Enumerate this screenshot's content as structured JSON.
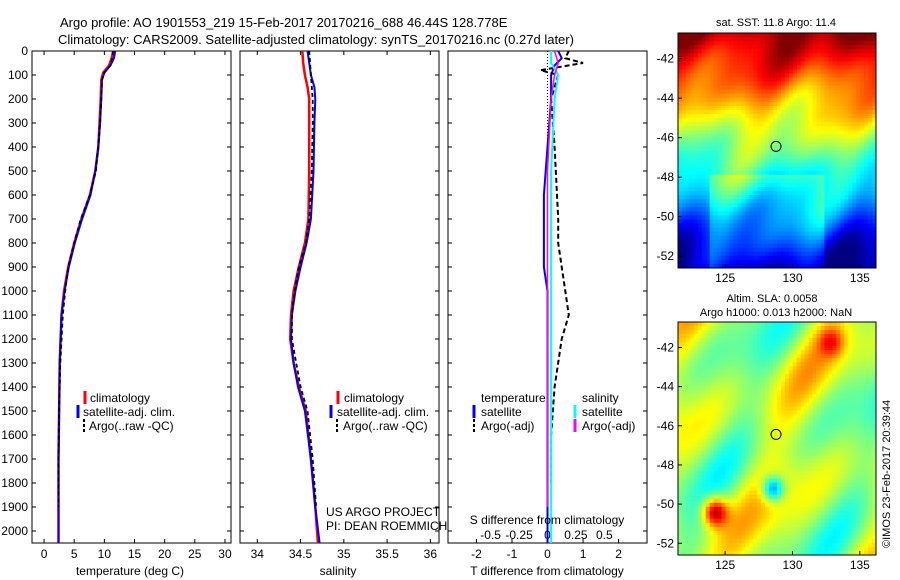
{
  "header": {
    "line1": "Argo profile: AO 1901553_219 15-Feb-2017 20170216_688 46.44S 128.778E",
    "line2": "Climatology: CARS2009. Satellite-adjusted climatology: synTS_20170216.nc (0.27d later)"
  },
  "sst_map": {
    "title": "sat. SST: 11.8 Argo: 11.4"
  },
  "sla_map": {
    "title1": "Altim. SLA: 0.0058",
    "title2": "Argo h1000: 0.013 h2000: NaN"
  },
  "credit": "©IMOS 23-Feb-2017 20:39:44",
  "project": {
    "line1": "US ARGO PROJECT",
    "line2": "PI: DEAN ROEMMICH"
  },
  "colors": {
    "climatology": "#ff0000",
    "satellite": "#0000ff",
    "argo": "#000000",
    "sal_satellite": "#00ffff",
    "sal_argo": "#ff00ff"
  },
  "chart_data": [
    {
      "type": "line",
      "xlabel": "temperature (deg C)",
      "ylabel": "",
      "xlim": [
        -2,
        31
      ],
      "ylim": [
        2050,
        0
      ],
      "xticks": [
        "0",
        "5",
        "10",
        "15",
        "20",
        "25",
        "30"
      ],
      "yticks": [
        "0",
        "100",
        "200",
        "300",
        "400",
        "500",
        "600",
        "700",
        "800",
        "900",
        "1000",
        "1100",
        "1200",
        "1300",
        "1400",
        "1500",
        "1600",
        "1700",
        "1800",
        "1900",
        "2000"
      ],
      "legend": {
        "position": "lower-left",
        "entries": [
          "climatology",
          "satellite-adj. clim.",
          "Argo(..raw -QC)"
        ]
      },
      "series": [
        {
          "name": "climatology",
          "x": [
            11.5,
            11.2,
            10.8,
            9.8,
            9.5,
            9.4,
            9.2,
            9.0,
            8.5,
            7.6,
            6.2,
            5.0,
            4.0,
            3.3,
            2.9,
            2.6,
            2.5,
            2.4,
            2.4,
            2.4
          ],
          "y": [
            0,
            30,
            60,
            90,
            120,
            200,
            300,
            400,
            500,
            600,
            700,
            800,
            900,
            1000,
            1100,
            1300,
            1500,
            1700,
            1900,
            2050
          ]
        },
        {
          "name": "satellite-adj. clim.",
          "x": [
            11.8,
            11.6,
            11.0,
            10.0,
            9.6,
            9.5,
            9.3,
            9.0,
            8.5,
            7.7,
            6.3,
            5.1,
            4.1,
            3.4,
            2.9,
            2.6,
            2.5,
            2.4,
            2.4,
            2.4
          ],
          "y": [
            0,
            30,
            60,
            90,
            120,
            200,
            300,
            400,
            500,
            600,
            700,
            800,
            900,
            1000,
            1100,
            1300,
            1500,
            1700,
            1900,
            2050
          ]
        },
        {
          "name": "Argo(..raw -QC)",
          "x": [
            11.4,
            11.3,
            11.0,
            10.0,
            9.6,
            9.5,
            9.3,
            9.0,
            8.6,
            7.6,
            6.1,
            5.0,
            4.0,
            3.5,
            3.1,
            2.7,
            2.5,
            2.4,
            2.4
          ],
          "y": [
            0,
            30,
            60,
            90,
            120,
            200,
            300,
            400,
            500,
            600,
            700,
            800,
            900,
            1000,
            1100,
            1300,
            1500,
            1700,
            1900
          ]
        }
      ]
    },
    {
      "type": "line",
      "xlabel": "salinity",
      "xlim": [
        33.8,
        36.1
      ],
      "ylim": [
        2050,
        0
      ],
      "xticks": [
        "34",
        "34.5",
        "35",
        "35.5",
        "36"
      ],
      "legend": {
        "position": "lower-right",
        "entries": [
          "climatology",
          "satellite-adj. clim.",
          "Argo(..raw -QC)"
        ]
      },
      "series": [
        {
          "name": "climatology",
          "x": [
            34.52,
            34.53,
            34.55,
            34.58,
            34.6,
            34.6,
            34.6,
            34.59,
            34.55,
            34.48,
            34.42,
            34.39,
            34.38,
            34.42,
            34.48,
            34.56,
            34.62,
            34.67,
            34.7
          ],
          "y": [
            0,
            50,
            100,
            150,
            200,
            300,
            500,
            700,
            800,
            900,
            1000,
            1100,
            1200,
            1300,
            1400,
            1500,
            1700,
            1900,
            2050
          ]
        },
        {
          "name": "satellite-adj. clim.",
          "x": [
            34.58,
            34.6,
            34.62,
            34.66,
            34.67,
            34.66,
            34.65,
            34.62,
            34.57,
            34.5,
            34.44,
            34.4,
            34.39,
            34.42,
            34.47,
            34.55,
            34.62,
            34.67,
            34.72
          ],
          "y": [
            0,
            50,
            100,
            150,
            200,
            300,
            500,
            700,
            800,
            900,
            1000,
            1100,
            1200,
            1300,
            1400,
            1500,
            1700,
            1900,
            2050
          ]
        },
        {
          "name": "Argo(..raw -QC)",
          "x": [
            34.6,
            34.61,
            34.62,
            34.63,
            34.64,
            34.64,
            34.63,
            34.6,
            34.56,
            34.48,
            34.43,
            34.4,
            34.4,
            34.45,
            34.5,
            34.58,
            34.64,
            34.68
          ],
          "y": [
            0,
            50,
            100,
            150,
            200,
            300,
            500,
            700,
            800,
            900,
            1000,
            1100,
            1200,
            1300,
            1400,
            1500,
            1700,
            1900
          ]
        }
      ]
    },
    {
      "type": "line",
      "xlabel": "T difference from climatology",
      "title": "S difference from climatology",
      "xlim": [
        -2.8,
        2.8
      ],
      "ylim": [
        2050,
        0
      ],
      "xticks": [
        "-2",
        "-1",
        "0",
        "1",
        "2"
      ],
      "top_xticks": [
        "-0.5",
        "-0.25",
        "0",
        "0.25",
        "0.5"
      ],
      "legend": {
        "position": "lower",
        "groups": [
          {
            "heading": "temperature",
            "entries": [
              "satellite",
              "Argo(-adj)"
            ]
          },
          {
            "heading": "salinity",
            "entries": [
              "satellite",
              "Argo(-adj)"
            ]
          }
        ]
      },
      "series": [
        {
          "name": "temperature satellite",
          "x": [
            0.3,
            0.4,
            0.2,
            0.1,
            0.1,
            0.0,
            -0.1,
            -0.1,
            -0.1,
            0.0,
            0.0,
            0.0,
            0.0,
            0.0,
            0.0,
            0.0
          ],
          "y": [
            0,
            30,
            60,
            100,
            200,
            400,
            600,
            800,
            900,
            1000,
            1100,
            1200,
            1400,
            1600,
            1800,
            2050
          ]
        },
        {
          "name": "temperature Argo(-adj)",
          "x": [
            0.6,
            0.5,
            1.0,
            -0.2,
            0.3,
            0.1,
            0.2,
            0.3,
            0.3,
            0.4,
            0.5,
            0.6,
            0.4,
            0.2,
            0.1,
            0.1
          ],
          "y": [
            0,
            30,
            50,
            80,
            100,
            200,
            400,
            700,
            800,
            900,
            1000,
            1100,
            1200,
            1400,
            1600,
            1800
          ]
        },
        {
          "name": "salinity satellite",
          "x": [
            0.1,
            0.1,
            0.3,
            0.2,
            0.1,
            0.1,
            0.1,
            0.1,
            0.1
          ],
          "y": [
            0,
            50,
            100,
            200,
            500,
            1000,
            1500,
            1800,
            2050
          ]
        },
        {
          "name": "salinity Argo(-adj)",
          "x": [
            0.2,
            0.3,
            0.2,
            0.1,
            0.0,
            0.0,
            0.0,
            0.0,
            0.0
          ],
          "y": [
            0,
            50,
            100,
            200,
            500,
            1000,
            1500,
            1800,
            1900
          ]
        }
      ]
    },
    {
      "type": "heatmap",
      "title": "sat. SST: 11.8 Argo: 11.4",
      "xticks": [
        "125",
        "130",
        "135"
      ],
      "yticks": [
        "-42",
        "-44",
        "-46",
        "-48",
        "-50",
        "-52"
      ],
      "xlim": [
        121.5,
        136.2
      ],
      "ylim": [
        -52.6,
        -40.7
      ],
      "marker": {
        "lon": 128.778,
        "lat": -46.44
      }
    },
    {
      "type": "heatmap",
      "title": "Altim. SLA: 0.0058",
      "xticks": [
        "125",
        "130",
        "135"
      ],
      "yticks": [
        "-42",
        "-44",
        "-46",
        "-48",
        "-50",
        "-52"
      ],
      "xlim": [
        121.5,
        136.2
      ],
      "ylim": [
        -52.6,
        -40.7
      ],
      "marker": {
        "lon": 128.778,
        "lat": -46.44
      }
    }
  ]
}
